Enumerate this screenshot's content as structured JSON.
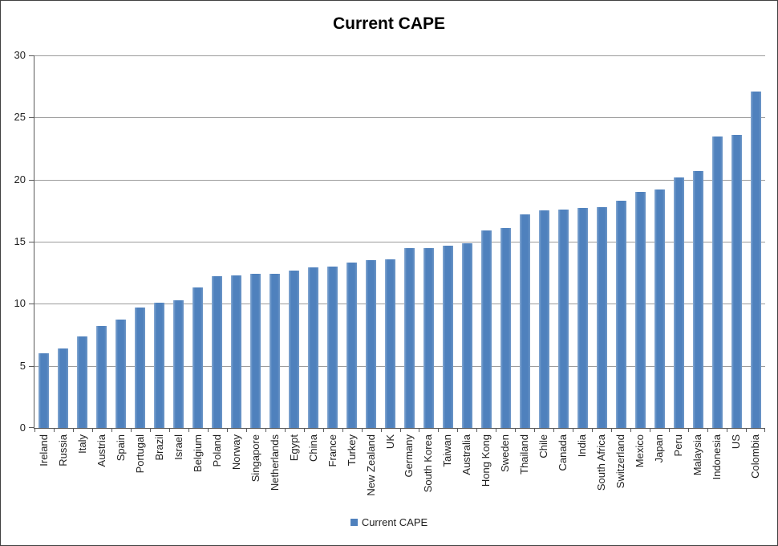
{
  "title": "Current CAPE",
  "legend": {
    "label": "Current CAPE"
  },
  "colors": {
    "bar": "#4f81bd",
    "bar_edge_light": "#87aad3",
    "bar_edge_right": "#6f98c8",
    "gridline": "#9c9c9c",
    "axis": "#595959",
    "text": "#1f1f1f"
  },
  "chart_data": {
    "type": "bar",
    "title": "Current CAPE",
    "categories": [
      "Ireland",
      "Russia",
      "Italy",
      "Austria",
      "Spain",
      "Portugal",
      "Brazil",
      "Israel",
      "Belgium",
      "Poland",
      "Norway",
      "Singapore",
      "Netherlands",
      "Egypt",
      "China",
      "France",
      "Turkey",
      "New Zealand",
      "UK",
      "Germany",
      "South Korea",
      "Taiwan",
      "Australia",
      "Hong Kong",
      "Sweden",
      "Thailand",
      "Chile",
      "Canada",
      "India",
      "South Africa",
      "Switzerland",
      "Mexico",
      "Japan",
      "Peru",
      "Malaysia",
      "Indonesia",
      "US",
      "Colombia"
    ],
    "values": [
      6.0,
      6.4,
      7.4,
      8.2,
      8.7,
      9.7,
      10.1,
      10.3,
      11.3,
      12.2,
      12.3,
      12.4,
      12.4,
      12.7,
      12.9,
      13.0,
      13.3,
      13.5,
      13.6,
      14.5,
      14.5,
      14.7,
      14.9,
      15.9,
      16.1,
      17.2,
      17.5,
      17.6,
      17.7,
      17.8,
      18.3,
      19.0,
      19.2,
      20.2,
      20.7,
      23.5,
      23.6,
      27.1
    ],
    "xlabel": "",
    "ylabel": "",
    "ylim": [
      0,
      30
    ],
    "yticks": [
      0,
      5,
      10,
      15,
      20,
      25,
      30
    ],
    "grid": true,
    "legend_entries": [
      "Current CAPE"
    ],
    "legend_position": "bottom"
  }
}
